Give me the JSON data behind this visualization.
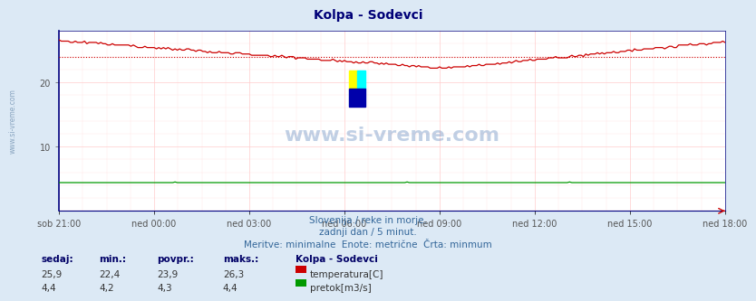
{
  "title": "Kolpa - Sodevci",
  "bg_color": "#dce9f5",
  "plot_bg_color": "#ffffff",
  "grid_color_h": "#ffcccc",
  "grid_color_v": "#ffcccc",
  "x_labels": [
    "sob 21:00",
    "ned 00:00",
    "ned 03:00",
    "ned 06:00",
    "ned 09:00",
    "ned 12:00",
    "ned 15:00",
    "ned 18:00"
  ],
  "y_ticks": [
    10,
    20
  ],
  "ylim": [
    0,
    28
  ],
  "temp_color": "#cc0000",
  "pretok_color": "#009900",
  "avg_line_color": "#cc0000",
  "avg_value": 23.9,
  "watermark_text": "www.si-vreme.com",
  "subtitle1": "Slovenija / reke in morje.",
  "subtitle2": "zadnji dan / 5 minut.",
  "subtitle3": "Meritve: minimalne  Enote: metrične  Črta: minmum",
  "legend_title": "Kolpa - Sodevci",
  "legend_temp": "temperatura[C]",
  "legend_pretok": "pretok[m3/s]",
  "info_headers": [
    "sedaj:",
    "min.:",
    "povpr.:",
    "maks.:"
  ],
  "info_temp": [
    "25,9",
    "22,4",
    "23,9",
    "26,3"
  ],
  "info_pretok": [
    "4,4",
    "4,2",
    "4,3",
    "4,4"
  ],
  "n_points": 288,
  "pretok_val": 4.4,
  "left_spine_color": "#000080",
  "tick_color": "#555555",
  "text_color_blue": "#336699",
  "text_color_dark": "#000066"
}
